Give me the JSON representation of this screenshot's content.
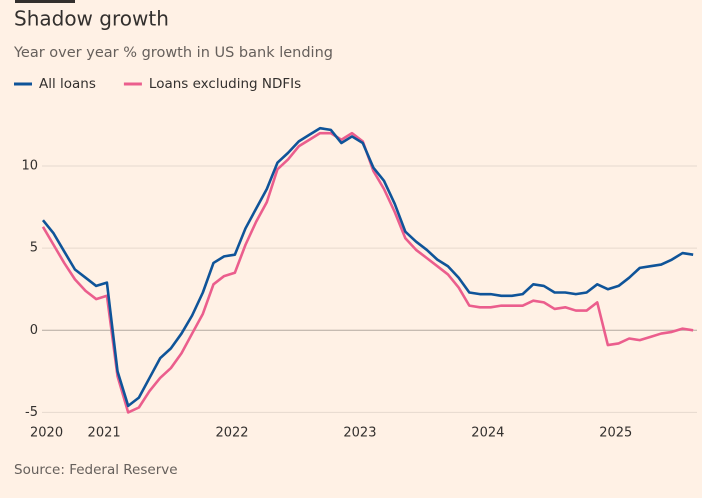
{
  "chart_data": {
    "type": "line",
    "title": "Shadow growth",
    "subtitle": "Year over year % growth in US bank lending",
    "source": "Source: Federal Reserve",
    "x": [
      2020.667,
      2020.75,
      2020.833,
      2020.917,
      2021.0,
      2021.083,
      2021.167,
      2021.25,
      2021.333,
      2021.417,
      2021.5,
      2021.583,
      2021.667,
      2021.75,
      2021.833,
      2021.917,
      2022.0,
      2022.083,
      2022.167,
      2022.25,
      2022.333,
      2022.417,
      2022.5,
      2022.583,
      2022.667,
      2022.75,
      2022.833,
      2022.917,
      2023.0,
      2023.083,
      2023.167,
      2023.25,
      2023.333,
      2023.417,
      2023.5,
      2023.583,
      2023.667,
      2023.75,
      2023.833,
      2023.917,
      2024.0,
      2024.083,
      2024.167,
      2024.25,
      2024.333,
      2024.417,
      2024.5,
      2024.583,
      2024.667,
      2024.75,
      2024.833,
      2024.917,
      2025.0,
      2025.083,
      2025.167,
      2025.25,
      2025.333,
      2025.417,
      2025.5,
      2025.583,
      2025.667,
      2025.75
    ],
    "series": [
      {
        "name": "All loans",
        "color": "#0f5499",
        "values": [
          6.7,
          5.9,
          4.8,
          3.7,
          3.2,
          2.7,
          2.9,
          -2.5,
          -4.6,
          -4.1,
          -2.9,
          -1.7,
          -1.1,
          -0.2,
          0.9,
          2.3,
          4.1,
          4.5,
          4.6,
          6.2,
          7.4,
          8.6,
          10.2,
          10.8,
          11.5,
          11.9,
          12.3,
          12.2,
          11.4,
          11.8,
          11.4,
          9.9,
          9.1,
          7.7,
          6.0,
          5.4,
          4.9,
          4.3,
          3.9,
          3.2,
          2.3,
          2.2,
          2.2,
          2.1,
          2.1,
          2.2,
          2.8,
          2.7,
          2.3,
          2.3,
          2.2,
          2.3,
          2.8,
          2.5,
          2.7,
          3.2,
          3.8,
          3.9,
          4.0,
          4.3,
          4.7,
          4.6
        ]
      },
      {
        "name": "Loans excluding NDFIs",
        "color": "#eb5e8d",
        "values": [
          6.3,
          5.2,
          4.1,
          3.1,
          2.4,
          1.9,
          2.1,
          -2.8,
          -5.0,
          -4.7,
          -3.7,
          -2.9,
          -2.3,
          -1.4,
          -0.2,
          1.0,
          2.8,
          3.3,
          3.5,
          5.2,
          6.6,
          7.8,
          9.8,
          10.4,
          11.2,
          11.6,
          12.0,
          12.0,
          11.6,
          12.0,
          11.5,
          9.7,
          8.6,
          7.2,
          5.6,
          4.9,
          4.4,
          3.9,
          3.4,
          2.6,
          1.5,
          1.4,
          1.4,
          1.5,
          1.5,
          1.5,
          1.8,
          1.7,
          1.3,
          1.4,
          1.2,
          1.2,
          1.7,
          -0.9,
          -0.8,
          -0.5,
          -0.6,
          -0.4,
          -0.2,
          -0.1,
          0.1,
          0.0
        ]
      }
    ],
    "xlim": [
      2020.55,
      2025.78
    ],
    "xticks": [
      2020,
      2021,
      2022,
      2023,
      2024,
      2025
    ],
    "ylim": [
      -5.4,
      12.8
    ],
    "yticks": [
      -5,
      0,
      5,
      10
    ],
    "grid": true,
    "legend": "top-left"
  }
}
